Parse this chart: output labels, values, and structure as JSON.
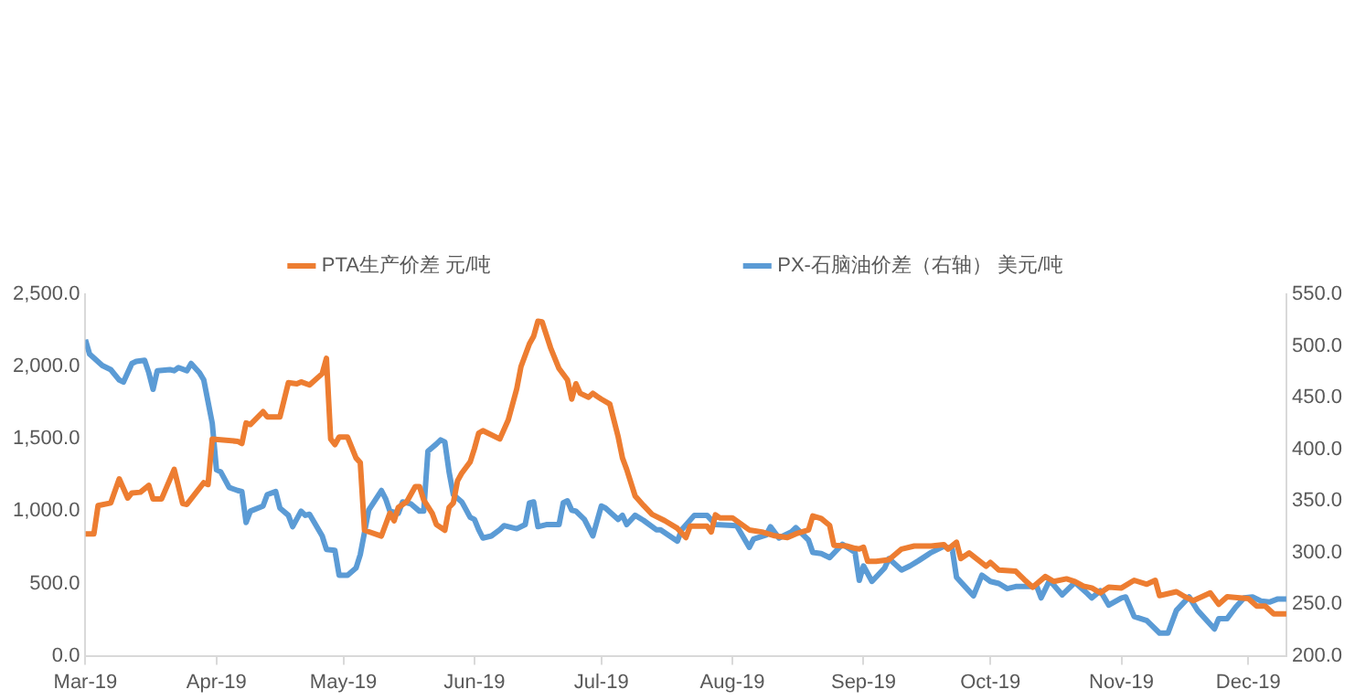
{
  "chart_data": {
    "type": "line",
    "legend": "top",
    "grid": false,
    "marker": "none",
    "line_style": "solid",
    "xlim": [
      "2019-03-01",
      "2019-12-10"
    ],
    "xticks": [
      {
        "value": "2019-03-01",
        "label": "Mar-19"
      },
      {
        "value": "2019-04-01",
        "label": "Apr-19"
      },
      {
        "value": "2019-05-01",
        "label": "May-19"
      },
      {
        "value": "2019-06-01",
        "label": "Jun-19"
      },
      {
        "value": "2019-07-01",
        "label": "Jul-19"
      },
      {
        "value": "2019-08-01",
        "label": "Aug-19"
      },
      {
        "value": "2019-09-01",
        "label": "Sep-19"
      },
      {
        "value": "2019-10-01",
        "label": "Oct-19"
      },
      {
        "value": "2019-11-01",
        "label": "Nov-19"
      },
      {
        "value": "2019-12-01",
        "label": "Dec-19"
      }
    ],
    "ylim": [
      0,
      2500
    ],
    "yticks": [
      {
        "value": 0,
        "label": "0.0"
      },
      {
        "value": 500,
        "label": "500.0"
      },
      {
        "value": 1000,
        "label": "1,000.0"
      },
      {
        "value": 1500,
        "label": "1,500.0"
      },
      {
        "value": 2000,
        "label": "2,000.0"
      },
      {
        "value": 2500,
        "label": "2,500.0"
      }
    ],
    "y2lim": [
      200,
      550
    ],
    "y2ticks": [
      {
        "value": 200,
        "label": "200.0"
      },
      {
        "value": 250,
        "label": "250.0"
      },
      {
        "value": 300,
        "label": "300.0"
      },
      {
        "value": 350,
        "label": "350.0"
      },
      {
        "value": 400,
        "label": "400.0"
      },
      {
        "value": 450,
        "label": "450.0"
      },
      {
        "value": 500,
        "label": "500.0"
      },
      {
        "value": 550,
        "label": "550.0"
      }
    ],
    "series": [
      {
        "name": "PTA生产价差 元/吨",
        "color": "#ed7d31",
        "x": [
          "2019-03-01",
          "2019-03-03",
          "2019-03-04",
          "2019-03-07",
          "2019-03-09",
          "2019-03-11",
          "2019-03-12",
          "2019-03-14",
          "2019-03-16",
          "2019-03-17",
          "2019-03-19",
          "2019-03-22",
          "2019-03-24",
          "2019-03-25",
          "2019-03-29",
          "2019-03-30",
          "2019-03-31",
          "2019-04-02",
          "2019-04-06",
          "2019-04-07",
          "2019-04-08",
          "2019-04-09",
          "2019-04-12",
          "2019-04-13",
          "2019-04-16",
          "2019-04-18",
          "2019-04-20",
          "2019-04-21",
          "2019-04-23",
          "2019-04-26",
          "2019-04-27",
          "2019-04-28",
          "2019-04-29",
          "2019-04-30",
          "2019-05-02",
          "2019-05-04",
          "2019-05-05",
          "2019-05-06",
          "2019-05-10",
          "2019-05-12",
          "2019-05-13",
          "2019-05-14",
          "2019-05-16",
          "2019-05-18",
          "2019-05-19",
          "2019-05-20",
          "2019-05-22",
          "2019-05-23",
          "2019-05-25",
          "2019-05-26",
          "2019-05-27",
          "2019-05-28",
          "2019-05-29",
          "2019-05-31",
          "2019-06-01",
          "2019-06-02",
          "2019-06-03",
          "2019-06-07",
          "2019-06-09",
          "2019-06-11",
          "2019-06-12",
          "2019-06-14",
          "2019-06-15",
          "2019-06-16",
          "2019-06-17",
          "2019-06-19",
          "2019-06-21",
          "2019-06-23",
          "2019-06-24",
          "2019-06-25",
          "2019-06-26",
          "2019-06-28",
          "2019-06-29",
          "2019-06-30",
          "2019-07-01",
          "2019-07-03",
          "2019-07-05",
          "2019-07-06",
          "2019-07-07",
          "2019-07-09",
          "2019-07-11",
          "2019-07-13",
          "2019-07-16",
          "2019-07-19",
          "2019-07-21",
          "2019-07-22",
          "2019-07-26",
          "2019-07-27",
          "2019-07-28",
          "2019-07-29",
          "2019-08-01",
          "2019-08-05",
          "2019-08-08",
          "2019-08-11",
          "2019-08-14",
          "2019-08-16",
          "2019-08-19",
          "2019-08-20",
          "2019-08-22",
          "2019-08-24",
          "2019-08-25",
          "2019-08-28",
          "2019-08-30",
          "2019-08-31",
          "2019-09-01",
          "2019-09-02",
          "2019-09-04",
          "2019-09-07",
          "2019-09-10",
          "2019-09-13",
          "2019-09-17",
          "2019-09-20",
          "2019-09-21",
          "2019-09-23",
          "2019-09-24",
          "2019-09-26",
          "2019-09-30",
          "2019-10-01",
          "2019-10-03",
          "2019-10-07",
          "2019-10-09",
          "2019-10-11",
          "2019-10-14",
          "2019-10-16",
          "2019-10-19",
          "2019-10-21",
          "2019-10-23",
          "2019-10-25",
          "2019-10-27",
          "2019-10-29",
          "2019-11-01",
          "2019-11-04",
          "2019-11-07",
          "2019-11-09",
          "2019-11-10",
          "2019-11-14",
          "2019-11-16",
          "2019-11-18",
          "2019-11-22",
          "2019-11-24",
          "2019-11-26",
          "2019-11-29",
          "2019-12-01",
          "2019-12-03",
          "2019-12-05",
          "2019-12-07",
          "2019-12-10"
        ],
        "values": [
          842,
          842,
          1039,
          1057,
          1223,
          1091,
          1126,
          1131,
          1178,
          1084,
          1084,
          1289,
          1052,
          1047,
          1197,
          1184,
          1499,
          1494,
          1483,
          1468,
          1610,
          1599,
          1688,
          1652,
          1652,
          1888,
          1881,
          1894,
          1873,
          1951,
          2057,
          1499,
          1460,
          1512,
          1512,
          1368,
          1336,
          868,
          828,
          986,
          934,
          1026,
          1065,
          1170,
          1170,
          1078,
          986,
          907,
          868,
          1026,
          1057,
          1210,
          1263,
          1341,
          1433,
          1539,
          1557,
          1499,
          1631,
          1846,
          1999,
          2157,
          2209,
          2314,
          2309,
          2130,
          1986,
          1907,
          1775,
          1881,
          1815,
          1788,
          1815,
          1794,
          1775,
          1741,
          1512,
          1368,
          1289,
          1105,
          1039,
          978,
          934,
          881,
          817,
          896,
          896,
          856,
          975,
          954,
          954,
          870,
          856,
          830,
          817,
          843,
          870,
          967,
          949,
          901,
          764,
          759,
          743,
          738,
          751,
          653,
          653,
          664,
          738,
          759,
          759,
          769,
          738,
          785,
          672,
          711,
          619,
          646,
          593,
          585,
          527,
          474,
          548,
          514,
          532,
          514,
          482,
          469,
          435,
          474,
          469,
          522,
          495,
          522,
          416,
          443,
          408,
          382,
          435,
          356,
          408,
          400,
          395,
          343,
          343,
          290,
          290
        ]
      },
      {
        "name": "PX-石脑油价差（右轴） 美元/吨",
        "color": "#5b9bd5",
        "axis": "y2",
        "x": [
          "2019-03-01",
          "2019-03-02",
          "2019-03-05",
          "2019-03-07",
          "2019-03-09",
          "2019-03-10",
          "2019-03-12",
          "2019-03-13",
          "2019-03-15",
          "2019-03-16",
          "2019-03-17",
          "2019-03-18",
          "2019-03-21",
          "2019-03-22",
          "2019-03-23",
          "2019-03-25",
          "2019-03-26",
          "2019-03-28",
          "2019-03-29",
          "2019-03-31",
          "2019-04-01",
          "2019-04-02",
          "2019-04-04",
          "2019-04-06",
          "2019-04-07",
          "2019-04-08",
          "2019-04-09",
          "2019-04-12",
          "2019-04-13",
          "2019-04-15",
          "2019-04-16",
          "2019-04-18",
          "2019-04-19",
          "2019-04-21",
          "2019-04-22",
          "2019-04-23",
          "2019-04-26",
          "2019-04-27",
          "2019-04-29",
          "2019-04-30",
          "2019-05-02",
          "2019-05-04",
          "2019-05-05",
          "2019-05-07",
          "2019-05-10",
          "2019-05-11",
          "2019-05-12",
          "2019-05-14",
          "2019-05-15",
          "2019-05-17",
          "2019-05-19",
          "2019-05-20",
          "2019-05-21",
          "2019-05-23",
          "2019-05-24",
          "2019-05-25",
          "2019-05-26",
          "2019-05-27",
          "2019-05-29",
          "2019-05-31",
          "2019-06-01",
          "2019-06-02",
          "2019-06-03",
          "2019-06-05",
          "2019-06-07",
          "2019-06-08",
          "2019-06-11",
          "2019-06-13",
          "2019-06-14",
          "2019-06-15",
          "2019-06-16",
          "2019-06-18",
          "2019-06-21",
          "2019-06-22",
          "2019-06-23",
          "2019-06-24",
          "2019-06-25",
          "2019-06-27",
          "2019-06-29",
          "2019-07-01",
          "2019-07-02",
          "2019-07-05",
          "2019-07-06",
          "2019-07-07",
          "2019-07-09",
          "2019-07-11",
          "2019-07-14",
          "2019-07-15",
          "2019-07-19",
          "2019-07-20",
          "2019-07-23",
          "2019-07-26",
          "2019-07-28",
          "2019-08-02",
          "2019-08-05",
          "2019-08-06",
          "2019-08-09",
          "2019-08-10",
          "2019-08-12",
          "2019-08-15",
          "2019-08-16",
          "2019-08-19",
          "2019-08-20",
          "2019-08-22",
          "2019-08-24",
          "2019-08-27",
          "2019-08-30",
          "2019-08-31",
          "2019-09-01",
          "2019-09-03",
          "2019-09-06",
          "2019-09-07",
          "2019-09-10",
          "2019-09-12",
          "2019-09-14",
          "2019-09-17",
          "2019-09-20",
          "2019-09-22",
          "2019-09-23",
          "2019-09-25",
          "2019-09-27",
          "2019-09-29",
          "2019-10-01",
          "2019-10-03",
          "2019-10-05",
          "2019-10-07",
          "2019-10-12",
          "2019-10-13",
          "2019-10-15",
          "2019-10-18",
          "2019-10-21",
          "2019-10-24",
          "2019-10-25",
          "2019-10-27",
          "2019-10-29",
          "2019-11-01",
          "2019-11-02",
          "2019-11-04",
          "2019-11-07",
          "2019-11-10",
          "2019-11-12",
          "2019-11-14",
          "2019-11-17",
          "2019-11-19",
          "2019-11-23",
          "2019-11-24",
          "2019-11-26",
          "2019-11-28",
          "2019-11-30",
          "2019-12-02",
          "2019-12-04",
          "2019-12-06",
          "2019-12-08",
          "2019-12-10"
        ],
        "values": [
          506,
          492,
          481,
          477,
          467,
          465,
          483,
          485,
          486,
          474,
          458,
          476,
          477,
          476,
          479,
          476,
          483,
          474,
          467,
          425,
          380,
          378,
          363,
          360,
          359,
          329,
          340,
          345,
          356,
          359,
          343,
          336,
          325,
          340,
          336,
          337,
          316,
          303,
          302,
          278,
          278,
          285,
          298,
          341,
          360,
          352,
          340,
          338,
          349,
          347,
          340,
          340,
          398,
          405,
          409,
          407,
          378,
          356,
          349,
          334,
          332,
          322,
          314,
          316,
          322,
          326,
          323,
          327,
          348,
          349,
          325,
          327,
          327,
          348,
          350,
          341,
          340,
          332,
          316,
          345,
          343,
          332,
          336,
          327,
          336,
          331,
          322,
          322,
          311,
          322,
          336,
          336,
          327,
          326,
          305,
          313,
          317,
          325,
          314,
          320,
          324,
          312,
          300,
          299,
          295,
          308,
          300,
          273,
          287,
          272,
          285,
          294,
          283,
          287,
          292,
          300,
          306,
          303,
          276,
          267,
          258,
          278,
          272,
          270,
          265,
          267,
          267,
          256,
          273,
          259,
          271,
          260,
          256,
          263,
          249,
          256,
          257,
          238,
          234,
          222,
          222,
          244,
          257,
          244,
          226,
          236,
          236,
          247,
          256,
          257,
          253,
          252,
          255,
          255
        ]
      }
    ]
  }
}
